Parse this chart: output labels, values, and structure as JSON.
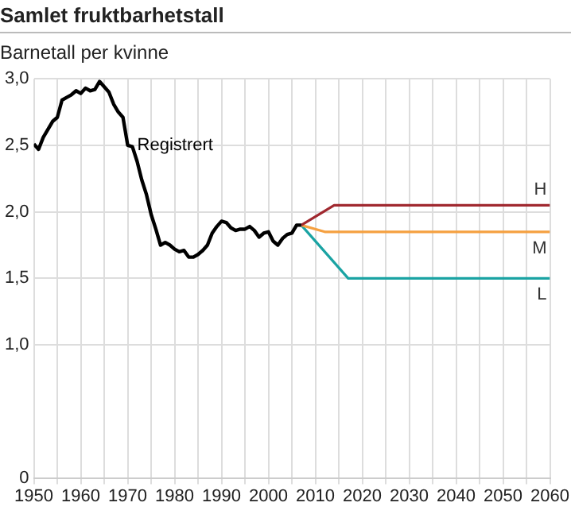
{
  "chart_data": {
    "type": "line",
    "title": "Samlet fruktbarhetstall",
    "ylabel": "Barnetall per kvinne",
    "xlim": [
      1950,
      2060
    ],
    "xticks": [
      1950,
      {
        "value": 1955,
        "label": null
      },
      1960,
      {
        "value": 1965,
        "label": null
      },
      1970,
      {
        "value": 1975,
        "label": null
      },
      1980,
      {
        "value": 1985,
        "label": null
      },
      1990,
      {
        "value": 1995,
        "label": null
      },
      2000,
      {
        "value": 2005,
        "label": null
      },
      2010,
      {
        "value": 2015,
        "label": null
      },
      2020,
      {
        "value": 2025,
        "label": null
      },
      2030,
      {
        "value": 2035,
        "label": null
      },
      2040,
      {
        "value": 2045,
        "label": null
      },
      2050,
      {
        "value": 2055,
        "label": null
      },
      2060
    ],
    "ylim": [
      0,
      3
    ],
    "yticks": [
      {
        "value": 0,
        "label": "0"
      },
      {
        "value": 1,
        "label": "1,0"
      },
      {
        "value": 1.5,
        "label": "1,5"
      },
      {
        "value": 2,
        "label": "2,0"
      },
      {
        "value": 2.5,
        "label": "2,5"
      },
      {
        "value": 3,
        "label": "3,0"
      }
    ],
    "grid": true,
    "legend": false,
    "marker": "none",
    "line_style": "solid",
    "series": [
      {
        "name": "Registrert",
        "color": "#000000",
        "x": [
          1950,
          1951,
          1952,
          1953,
          1954,
          1955,
          1956,
          1957,
          1958,
          1959,
          1960,
          1961,
          1962,
          1963,
          1964,
          1965,
          1966,
          1967,
          1968,
          1969,
          1970,
          1971,
          1972,
          1973,
          1974,
          1975,
          1976,
          1977,
          1978,
          1979,
          1980,
          1981,
          1982,
          1983,
          1984,
          1985,
          1986,
          1987,
          1988,
          1989,
          1990,
          1991,
          1992,
          1993,
          1994,
          1995,
          1996,
          1997,
          1998,
          1999,
          2000,
          2001,
          2002,
          2003,
          2004,
          2005,
          2006,
          2007
        ],
        "values": [
          2.51,
          2.47,
          2.56,
          2.62,
          2.68,
          2.71,
          2.84,
          2.86,
          2.88,
          2.91,
          2.89,
          2.93,
          2.91,
          2.92,
          2.98,
          2.94,
          2.9,
          2.81,
          2.75,
          2.71,
          2.5,
          2.49,
          2.38,
          2.24,
          2.13,
          1.98,
          1.87,
          1.75,
          1.77,
          1.75,
          1.72,
          1.7,
          1.71,
          1.66,
          1.66,
          1.68,
          1.71,
          1.75,
          1.84,
          1.89,
          1.93,
          1.92,
          1.88,
          1.86,
          1.87,
          1.87,
          1.89,
          1.86,
          1.81,
          1.84,
          1.85,
          1.78,
          1.75,
          1.8,
          1.83,
          1.84,
          1.9,
          1.9
        ]
      },
      {
        "name": "H",
        "color": "#a0282f",
        "x": [
          2007,
          2014,
          2060
        ],
        "values": [
          1.9,
          2.05,
          2.05
        ]
      },
      {
        "name": "M",
        "color": "#f5a040",
        "x": [
          2007,
          2012,
          2060
        ],
        "values": [
          1.9,
          1.85,
          1.85
        ]
      },
      {
        "name": "L",
        "color": "#1aa3a3",
        "x": [
          2007,
          2017,
          2060
        ],
        "values": [
          1.9,
          1.5,
          1.5
        ]
      }
    ]
  }
}
